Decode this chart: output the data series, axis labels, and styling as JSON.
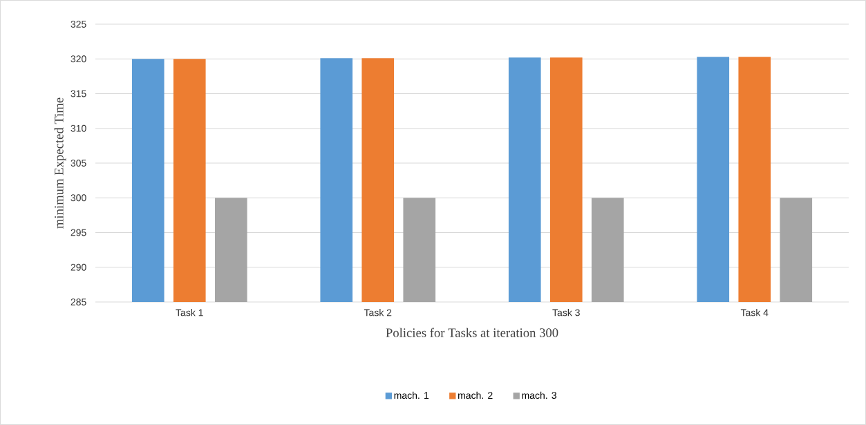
{
  "chart_data": {
    "type": "bar",
    "xlabel": "Policies for Tasks at iteration 300",
    "ylabel": "minimum Expected Time",
    "categories": [
      "Task 1",
      "Task 2",
      "Task 3",
      "Task 4"
    ],
    "series": [
      {
        "name": "mach. 1",
        "color": "#5b9bd5",
        "values": [
          320,
          320.1,
          320.2,
          320.3
        ]
      },
      {
        "name": "mach. 2",
        "color": "#ed7d31",
        "values": [
          320,
          320.1,
          320.2,
          320.3
        ]
      },
      {
        "name": "mach. 3",
        "color": "#a5a5a5",
        "values": [
          300,
          300,
          300,
          300
        ]
      }
    ],
    "ylim": [
      285,
      325
    ],
    "yticks": [
      285,
      290,
      295,
      300,
      305,
      310,
      315,
      320,
      325
    ],
    "grid": "y",
    "legend": "bottom"
  }
}
